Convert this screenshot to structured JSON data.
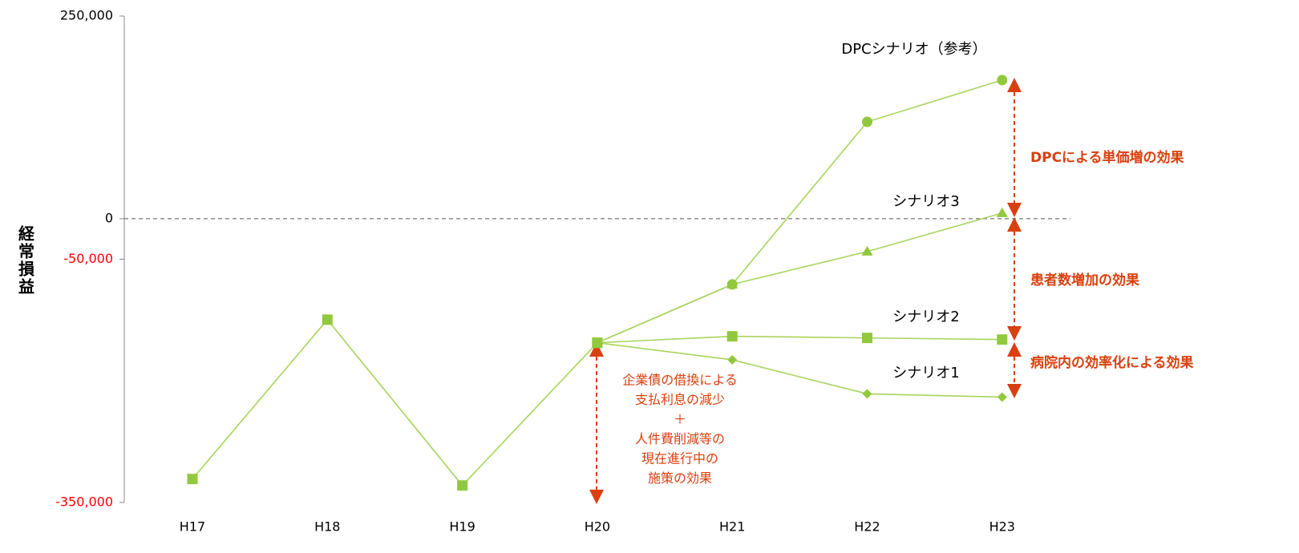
{
  "chart_data": {
    "type": "line",
    "y_label": "経常損益",
    "categories": [
      "H17",
      "H18",
      "H19",
      "H20",
      "H21",
      "H22",
      "H23"
    ],
    "ylim": [
      -350000,
      250000
    ],
    "yticks": [
      {
        "value": -350000,
        "label": "-350,000"
      },
      {
        "value": -50000,
        "label": "-50,000"
      },
      0,
      {
        "value": 250000,
        "label": "250,000"
      }
    ],
    "negative_tick_color": "#ff0000",
    "zero_line": true,
    "series": [
      {
        "color": "#92c83e",
        "marker": "square",
        "values": [
          -321000,
          -124500,
          -329000,
          -153000,
          null,
          null,
          null
        ]
      },
      {
        "name": "シナリオ1",
        "color": "#92c83e",
        "marker": "diamond",
        "values": [
          null,
          null,
          null,
          -153000,
          -174000,
          -216000,
          -220000
        ]
      },
      {
        "name": "シナリオ2",
        "color": "#92c83e",
        "marker": "square",
        "values": [
          null,
          null,
          null,
          -153000,
          -145000,
          -147000,
          -149000
        ]
      },
      {
        "name": "シナリオ3",
        "color": "#92c83e",
        "marker": "triangle",
        "values": [
          null,
          null,
          null,
          -153000,
          -81000,
          -40500,
          7000
        ]
      },
      {
        "name": "DPCシナリオ（参考）",
        "color": "#92c83e",
        "marker": "circle",
        "values": [
          null,
          null,
          null,
          -153000,
          -81000,
          119500,
          171000
        ]
      }
    ],
    "annotations": [
      {
        "text": "DPCによる単価増の効果"
      },
      {
        "text": "患者数増加の効果"
      },
      {
        "text": "病院内の効率化による効果"
      },
      {
        "lines": [
          "企業債の借換による",
          "支払利息の減少",
          "＋",
          "人件費削減等の",
          "現在進行中の",
          "施策の効果"
        ]
      }
    ]
  }
}
